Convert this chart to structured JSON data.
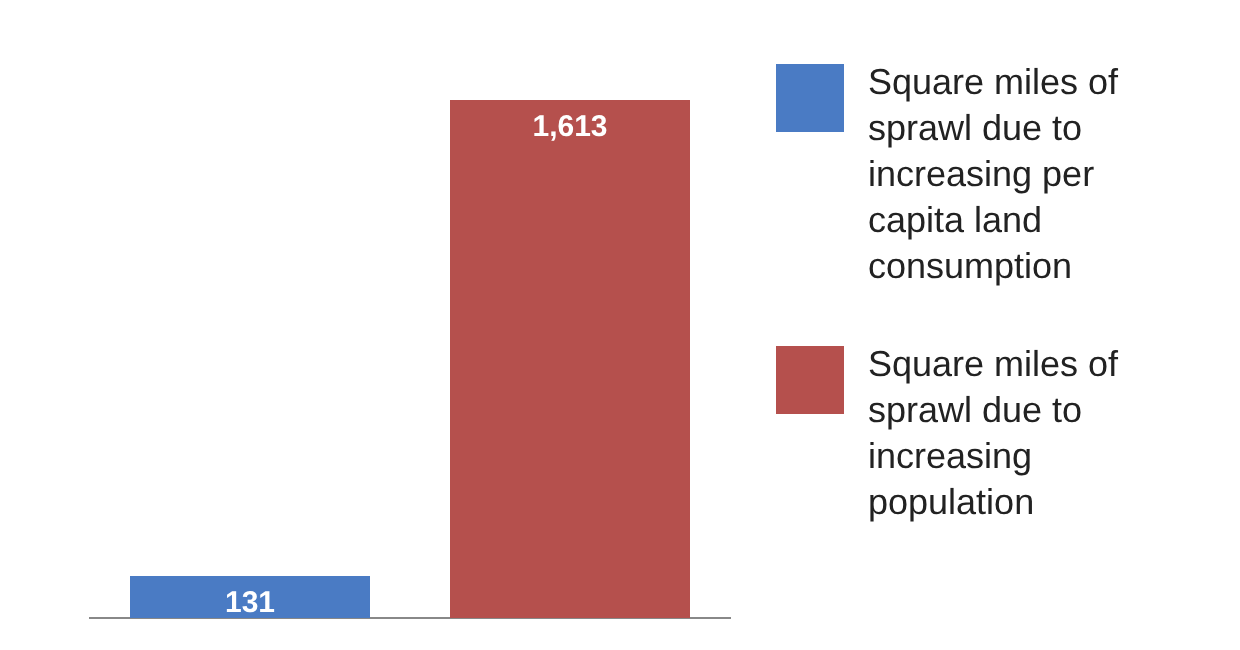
{
  "chart_data": {
    "type": "bar",
    "categories": [
      null,
      null
    ],
    "stacked": true,
    "legend": "right",
    "grid": false,
    "series": [
      {
        "name": "Square miles of sprawl due to increasing per capita land consumption",
        "color": "#4a7bc4",
        "values": [
          131,
          null
        ],
        "value_labels": [
          "131",
          null
        ]
      },
      {
        "name": "Square miles of sprawl due to increasing population",
        "color": "#b5504d",
        "values": [
          null,
          1613
        ],
        "value_labels": [
          null,
          "1,613"
        ]
      }
    ]
  }
}
